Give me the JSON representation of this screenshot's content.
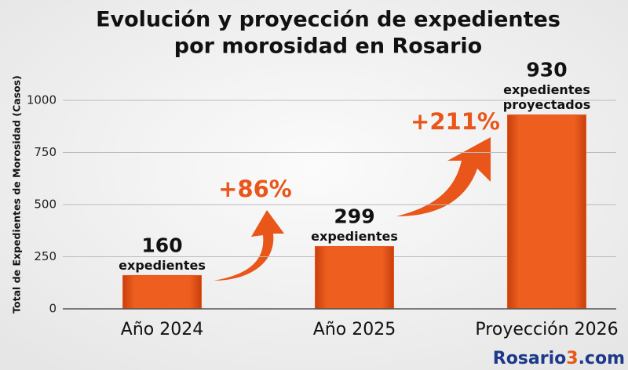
{
  "chart_data": {
    "type": "bar",
    "title": [
      "Evolución y proyección de expedientes",
      "por morosidad en Rosario"
    ],
    "y_axis_label": "Total de Expedientes de Morosidad (Casos)",
    "categories": [
      "Año 2024",
      "Año 2025",
      "Proyección 2026"
    ],
    "values": [
      160,
      299,
      930
    ],
    "value_captions": [
      [
        "expedientes"
      ],
      [
        "expedientes"
      ],
      [
        "expedientes",
        "proyectados"
      ]
    ],
    "color": "#e8561a",
    "ylim": [
      0,
      1000
    ],
    "yticks": [
      0,
      250,
      500,
      750,
      1000
    ],
    "grid": true,
    "annotations": [
      "+86%",
      "+211%"
    ],
    "watermark": [
      "Rosario",
      "3",
      ".com"
    ]
  }
}
